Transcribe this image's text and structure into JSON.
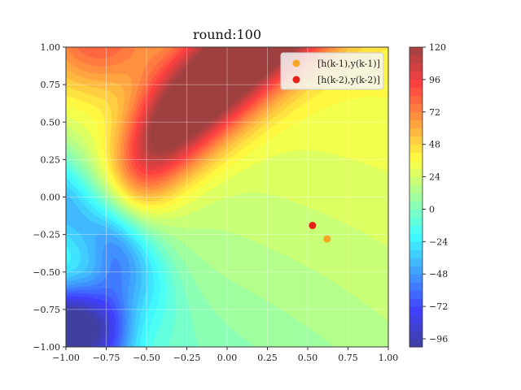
{
  "chart_data": {
    "type": "heatmap",
    "title": "round:100",
    "xlabel": "",
    "ylabel": "",
    "xlim": [
      -1.0,
      1.0
    ],
    "ylim": [
      -1.0,
      1.0
    ],
    "x_ticks": [
      "−1.00",
      "−0.75",
      "−0.50",
      "−0.25",
      "0.00",
      "0.25",
      "0.50",
      "0.75",
      "1.00"
    ],
    "y_ticks": [
      "−1.00",
      "−0.75",
      "−0.50",
      "−0.25",
      "0.00",
      "0.25",
      "0.50",
      "0.75",
      "1.00"
    ],
    "colorbar": {
      "range": [
        -102,
        120
      ],
      "ticks": [
        "120",
        "96",
        "72",
        "48",
        "24",
        "0",
        "−24",
        "−48",
        "−72",
        "−96"
      ],
      "colormap": "jet",
      "alpha": 0.75
    },
    "grid": true,
    "legend_position": "top-right",
    "series": [
      {
        "name": "[h(k-1),y(k-1)]",
        "color": "#f5a623",
        "points": [
          {
            "x": 0.62,
            "y": -0.28
          }
        ]
      },
      {
        "name": "[h(k-2),y(k-2)]",
        "color": "#e8201a",
        "points": [
          {
            "x": 0.53,
            "y": -0.19
          }
        ]
      }
    ]
  }
}
